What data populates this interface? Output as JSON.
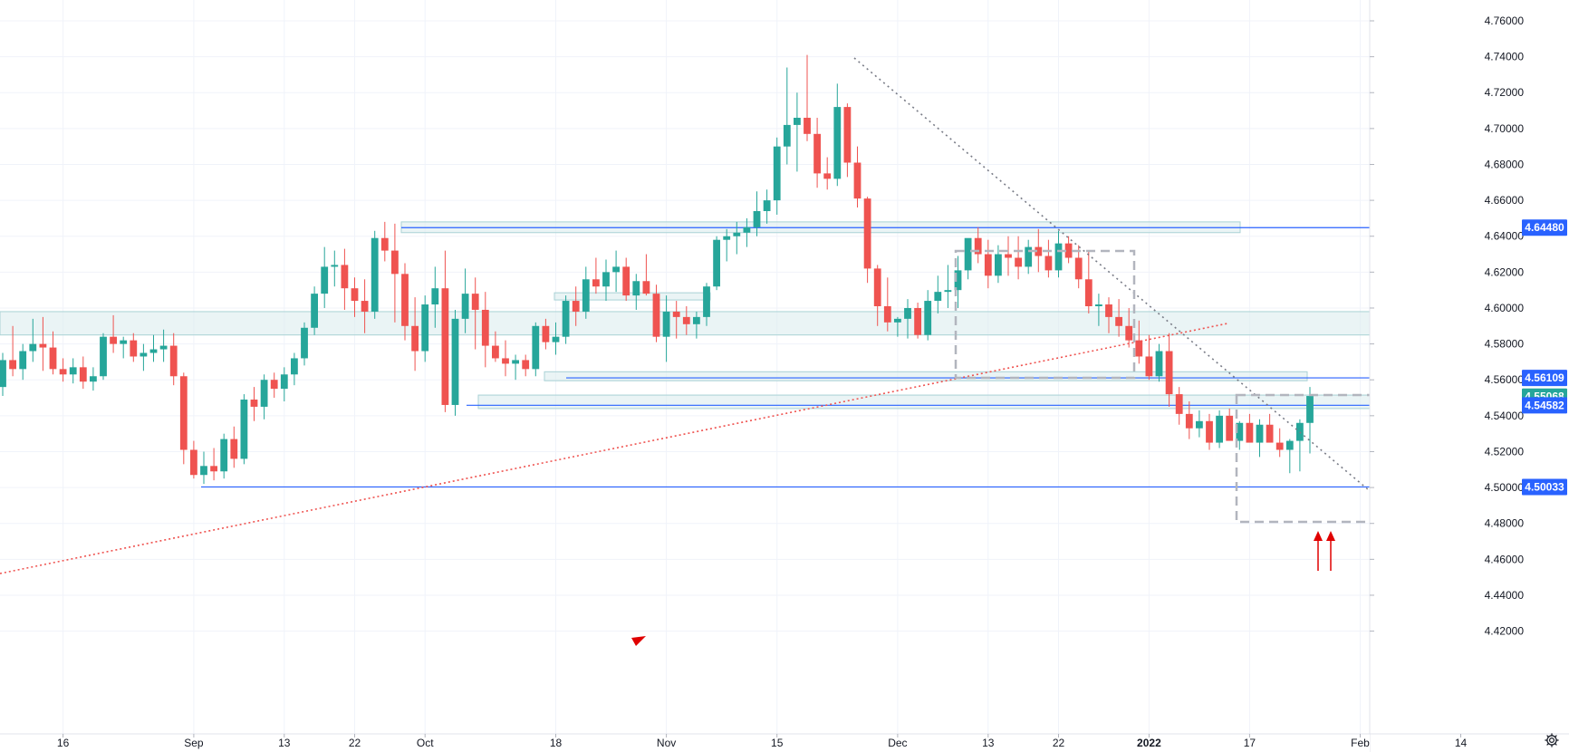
{
  "chart_data": {
    "type": "candlestick",
    "y_range": [
      4.405,
      4.77
    ],
    "y_ticks": [
      "4.76000",
      "4.74000",
      "4.72000",
      "4.70000",
      "4.68000",
      "4.66000",
      "4.64000",
      "4.62000",
      "4.60000",
      "4.58000",
      "4.56000",
      "4.54000",
      "4.52000",
      "4.50000",
      "4.48000",
      "4.46000",
      "4.44000",
      "4.42000"
    ],
    "x_ticks": [
      {
        "label": "16",
        "i": 6
      },
      {
        "label": "Sep",
        "i": 19
      },
      {
        "label": "13",
        "i": 28
      },
      {
        "label": "22",
        "i": 35
      },
      {
        "label": "Oct",
        "i": 42
      },
      {
        "label": "18",
        "i": 55
      },
      {
        "label": "Nov",
        "i": 66
      },
      {
        "label": "15",
        "i": 77
      },
      {
        "label": "Dec",
        "i": 89
      },
      {
        "label": "13",
        "i": 98
      },
      {
        "label": "22",
        "i": 105
      },
      {
        "label": "2022",
        "i": 114,
        "bold": true
      },
      {
        "label": "17",
        "i": 124
      },
      {
        "label": "Feb",
        "i": 135
      },
      {
        "label": "14",
        "i": 145
      }
    ],
    "candles": [
      [
        4.556,
        4.575,
        4.551,
        4.571
      ],
      [
        4.571,
        4.59,
        4.562,
        4.566
      ],
      [
        4.566,
        4.58,
        4.56,
        4.576
      ],
      [
        4.576,
        4.594,
        4.57,
        4.58
      ],
      [
        4.58,
        4.595,
        4.565,
        4.578
      ],
      [
        4.578,
        4.587,
        4.563,
        4.566
      ],
      [
        4.566,
        4.572,
        4.559,
        4.563
      ],
      [
        4.563,
        4.572,
        4.558,
        4.567
      ],
      [
        4.567,
        4.573,
        4.555,
        4.559
      ],
      [
        4.559,
        4.567,
        4.554,
        4.562
      ],
      [
        4.562,
        4.586,
        4.56,
        4.584
      ],
      [
        4.584,
        4.596,
        4.575,
        4.58
      ],
      [
        4.58,
        4.584,
        4.572,
        4.582
      ],
      [
        4.582,
        4.586,
        4.57,
        4.573
      ],
      [
        4.573,
        4.58,
        4.565,
        4.575
      ],
      [
        4.575,
        4.585,
        4.57,
        4.577
      ],
      [
        4.577,
        4.588,
        4.57,
        4.579
      ],
      [
        4.579,
        4.586,
        4.557,
        4.562
      ],
      [
        4.562,
        4.564,
        4.513,
        4.521
      ],
      [
        4.521,
        4.526,
        4.505,
        4.507
      ],
      [
        4.507,
        4.52,
        4.502,
        4.512
      ],
      [
        4.512,
        4.522,
        4.504,
        4.509
      ],
      [
        4.509,
        4.53,
        4.505,
        4.527
      ],
      [
        4.527,
        4.534,
        4.511,
        4.516
      ],
      [
        4.516,
        4.552,
        4.513,
        4.549
      ],
      [
        4.549,
        4.556,
        4.537,
        4.545
      ],
      [
        4.545,
        4.563,
        4.538,
        4.56
      ],
      [
        4.56,
        4.564,
        4.55,
        4.555
      ],
      [
        4.555,
        4.567,
        4.548,
        4.563
      ],
      [
        4.563,
        4.575,
        4.557,
        4.572
      ],
      [
        4.572,
        4.592,
        4.568,
        4.589
      ],
      [
        4.589,
        4.612,
        4.585,
        4.608
      ],
      [
        4.608,
        4.634,
        4.6,
        4.623
      ],
      [
        4.623,
        4.632,
        4.612,
        4.624
      ],
      [
        4.624,
        4.633,
        4.599,
        4.611
      ],
      [
        4.611,
        4.617,
        4.595,
        4.604
      ],
      [
        4.604,
        4.616,
        4.586,
        4.598
      ],
      [
        4.598,
        4.643,
        4.594,
        4.639
      ],
      [
        4.639,
        4.648,
        4.626,
        4.632
      ],
      [
        4.632,
        4.647,
        4.592,
        4.619
      ],
      [
        4.619,
        4.625,
        4.582,
        4.59
      ],
      [
        4.59,
        4.606,
        4.565,
        4.576
      ],
      [
        4.576,
        4.607,
        4.57,
        4.602
      ],
      [
        4.602,
        4.623,
        4.589,
        4.611
      ],
      [
        4.611,
        4.632,
        4.542,
        4.546
      ],
      [
        4.546,
        4.599,
        4.54,
        4.594
      ],
      [
        4.594,
        4.622,
        4.586,
        4.608
      ],
      [
        4.608,
        4.617,
        4.577,
        4.599
      ],
      [
        4.599,
        4.609,
        4.567,
        4.579
      ],
      [
        4.579,
        4.587,
        4.57,
        4.572
      ],
      [
        4.572,
        4.582,
        4.562,
        4.569
      ],
      [
        4.569,
        4.574,
        4.56,
        4.571
      ],
      [
        4.571,
        4.574,
        4.562,
        4.566
      ],
      [
        4.566,
        4.592,
        4.562,
        4.59
      ],
      [
        4.59,
        4.594,
        4.577,
        4.581
      ],
      [
        4.581,
        4.592,
        4.574,
        4.584
      ],
      [
        4.584,
        4.607,
        4.58,
        4.604
      ],
      [
        4.604,
        4.612,
        4.59,
        4.598
      ],
      [
        4.598,
        4.623,
        4.594,
        4.616
      ],
      [
        4.616,
        4.628,
        4.608,
        4.612
      ],
      [
        4.612,
        4.627,
        4.604,
        4.62
      ],
      [
        4.62,
        4.632,
        4.609,
        4.623
      ],
      [
        4.623,
        4.628,
        4.604,
        4.607
      ],
      [
        4.607,
        4.619,
        4.599,
        4.615
      ],
      [
        4.615,
        4.63,
        4.607,
        4.608
      ],
      [
        4.608,
        4.613,
        4.581,
        4.584
      ],
      [
        4.584,
        4.607,
        4.57,
        4.598
      ],
      [
        4.598,
        4.604,
        4.583,
        4.595
      ],
      [
        4.595,
        4.601,
        4.585,
        4.591
      ],
      [
        4.591,
        4.598,
        4.583,
        4.595
      ],
      [
        4.595,
        4.614,
        4.59,
        4.612
      ],
      [
        4.612,
        4.64,
        4.61,
        4.638
      ],
      [
        4.638,
        4.644,
        4.626,
        4.64
      ],
      [
        4.64,
        4.648,
        4.63,
        4.642
      ],
      [
        4.642,
        4.65,
        4.634,
        4.645
      ],
      [
        4.645,
        4.665,
        4.64,
        4.654
      ],
      [
        4.654,
        4.666,
        4.647,
        4.66
      ],
      [
        4.66,
        4.695,
        4.652,
        4.69
      ],
      [
        4.69,
        4.734,
        4.68,
        4.702
      ],
      [
        4.702,
        4.72,
        4.676,
        4.706
      ],
      [
        4.706,
        4.741,
        4.693,
        4.697
      ],
      [
        4.697,
        4.706,
        4.667,
        4.675
      ],
      [
        4.675,
        4.684,
        4.666,
        4.672
      ],
      [
        4.672,
        4.725,
        4.668,
        4.712
      ],
      [
        4.712,
        4.714,
        4.673,
        4.681
      ],
      [
        4.681,
        4.69,
        4.656,
        4.661
      ],
      [
        4.661,
        4.662,
        4.614,
        4.622
      ],
      [
        4.622,
        4.624,
        4.59,
        4.601
      ],
      [
        4.601,
        4.617,
        4.587,
        4.592
      ],
      [
        4.592,
        4.595,
        4.584,
        4.594
      ],
      [
        4.594,
        4.605,
        4.583,
        4.6
      ],
      [
        4.6,
        4.603,
        4.583,
        4.585
      ],
      [
        4.585,
        4.61,
        4.582,
        4.604
      ],
      [
        4.604,
        4.618,
        4.597,
        4.609
      ],
      [
        4.609,
        4.624,
        4.6,
        4.61
      ],
      [
        4.61,
        4.629,
        4.6,
        4.621
      ],
      [
        4.621,
        4.638,
        4.616,
        4.639
      ],
      [
        4.639,
        4.645,
        4.625,
        4.63
      ],
      [
        4.63,
        4.638,
        4.611,
        4.618
      ],
      [
        4.618,
        4.635,
        4.614,
        4.63
      ],
      [
        4.63,
        4.64,
        4.618,
        4.628
      ],
      [
        4.628,
        4.64,
        4.616,
        4.623
      ],
      [
        4.623,
        4.638,
        4.619,
        4.634
      ],
      [
        4.634,
        4.644,
        4.62,
        4.629
      ],
      [
        4.629,
        4.638,
        4.617,
        4.621
      ],
      [
        4.621,
        4.643,
        4.617,
        4.636
      ],
      [
        4.636,
        4.64,
        4.625,
        4.628
      ],
      [
        4.628,
        4.635,
        4.611,
        4.616
      ],
      [
        4.616,
        4.632,
        4.597,
        4.601
      ],
      [
        4.601,
        4.608,
        4.59,
        4.602
      ],
      [
        4.602,
        4.606,
        4.586,
        4.595
      ],
      [
        4.595,
        4.605,
        4.584,
        4.59
      ],
      [
        4.59,
        4.6,
        4.578,
        4.582
      ],
      [
        4.582,
        4.593,
        4.569,
        4.573
      ],
      [
        4.573,
        4.585,
        4.56,
        4.562
      ],
      [
        4.562,
        4.58,
        4.559,
        4.576
      ],
      [
        4.576,
        4.586,
        4.545,
        4.552
      ],
      [
        4.552,
        4.556,
        4.535,
        4.541
      ],
      [
        4.541,
        4.548,
        4.527,
        4.533
      ],
      [
        4.533,
        4.543,
        4.528,
        4.537
      ],
      [
        4.537,
        4.541,
        4.521,
        4.525
      ],
      [
        4.525,
        4.543,
        4.522,
        4.54
      ],
      [
        4.54,
        4.544,
        4.527,
        4.526
      ],
      [
        4.526,
        4.537,
        4.521,
        4.536
      ],
      [
        4.536,
        4.541,
        4.527,
        4.525
      ],
      [
        4.525,
        4.538,
        4.517,
        4.535
      ],
      [
        4.535,
        4.541,
        4.527,
        4.525
      ],
      [
        4.525,
        4.533,
        4.517,
        4.521
      ],
      [
        4.521,
        4.527,
        4.508,
        4.526
      ],
      [
        4.526,
        4.538,
        4.509,
        4.536
      ],
      [
        4.536,
        4.556,
        4.519,
        4.551
      ]
    ]
  },
  "price_tags": [
    {
      "label": "4.64480",
      "price": 4.6448,
      "color": "#2962ff"
    },
    {
      "label": "4.56109",
      "price": 4.56109,
      "color": "#2962ff"
    },
    {
      "label": "4.55068",
      "price": 4.55068,
      "color": "#26a69a"
    },
    {
      "label": "4.54582",
      "price": 4.54582,
      "color": "#2962ff"
    },
    {
      "label": "4.50033",
      "price": 4.50033,
      "color": "#2962ff"
    }
  ],
  "colors": {
    "up": "#26a69a",
    "down": "#ef5350",
    "hline": "#2962ff",
    "trend": "#ef5350",
    "grid": "#f0f3fa",
    "zone": "#dcecee"
  },
  "ui": {
    "settings_icon": "gear-icon"
  }
}
